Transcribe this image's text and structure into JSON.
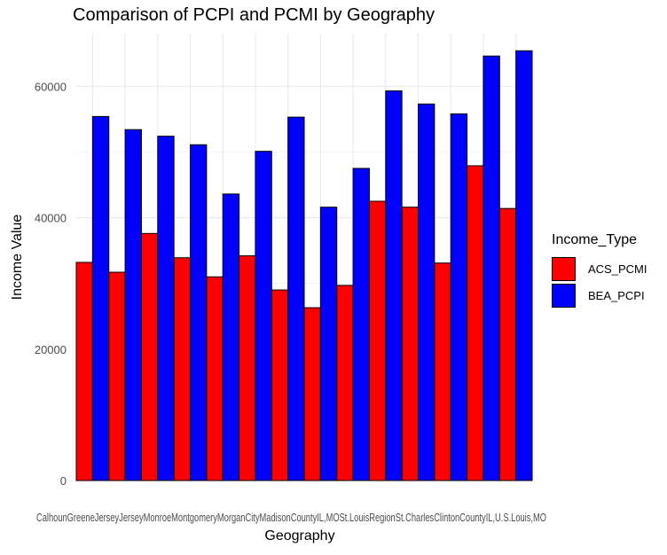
{
  "chart_data": {
    "type": "bar",
    "title": "Comparison of PCPI and PCMI by Geography",
    "xlabel": "Geography",
    "ylabel": "Income Value",
    "ylim": [
      0,
      68000
    ],
    "yticks": [
      0,
      20000,
      40000,
      60000
    ],
    "ytick_labels": [
      "0",
      "20000",
      "40000",
      "60000"
    ],
    "x_tick_text": "CalhounGreeneJerseyJerseyMonroeMontgomeryMorganCityMadisonCountyIL,MOSt.LouisRegionSt.CharlesClintonCountyIL,U.S.Louis,MO",
    "grid": true,
    "legend_position": "right",
    "legend_title": "Income_Type",
    "series": [
      {
        "name": "ACS_PCMI",
        "color": "#ff0000",
        "values": [
          33200,
          31700,
          37600,
          33900,
          31000,
          34200,
          29000,
          26300,
          29700,
          42500,
          41600,
          33100,
          47900,
          41400
        ]
      },
      {
        "name": "BEA_PCPI",
        "color": "#0000ff",
        "values": [
          55400,
          53400,
          52400,
          51100,
          43600,
          50100,
          55300,
          41600,
          47500,
          59300,
          57300,
          55800,
          64600,
          65400
        ]
      }
    ]
  }
}
